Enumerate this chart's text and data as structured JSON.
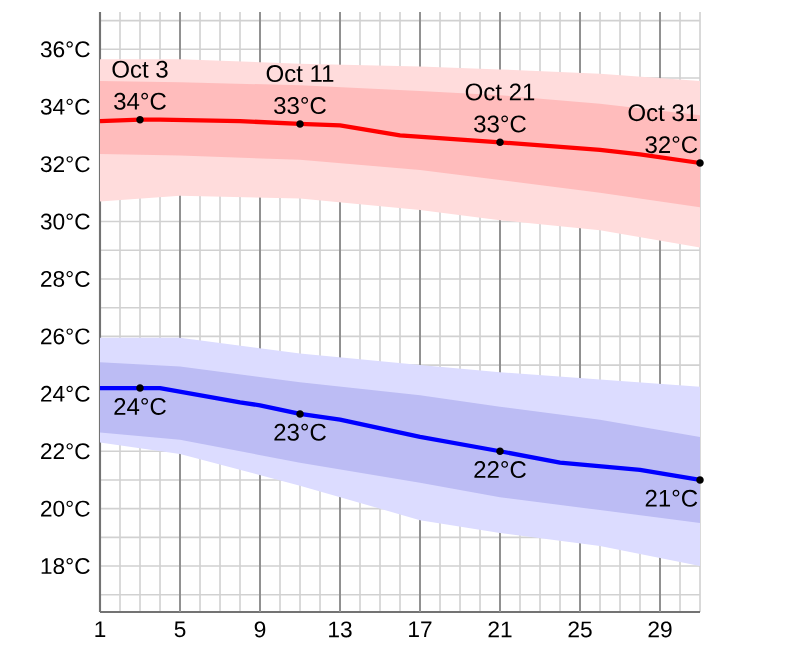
{
  "chart_data": {
    "type": "line",
    "xlim": [
      1,
      31
    ],
    "ylim": [
      16.4,
      37.3
    ],
    "xticks": [
      1,
      {
        "value": 2,
        "label": null
      },
      {
        "value": 3,
        "label": null
      },
      {
        "value": 4,
        "label": null
      },
      5,
      {
        "value": 6,
        "label": null
      },
      {
        "value": 7,
        "label": null
      },
      {
        "value": 8,
        "label": null
      },
      9,
      {
        "value": 10,
        "label": null
      },
      {
        "value": 11,
        "label": null
      },
      {
        "value": 12,
        "label": null
      },
      13,
      {
        "value": 14,
        "label": null
      },
      {
        "value": 15,
        "label": null
      },
      {
        "value": 16,
        "label": null
      },
      17,
      {
        "value": 18,
        "label": null
      },
      {
        "value": 19,
        "label": null
      },
      {
        "value": 20,
        "label": null
      },
      21,
      {
        "value": 22,
        "label": null
      },
      {
        "value": 23,
        "label": null
      },
      {
        "value": 24,
        "label": null
      },
      25,
      {
        "value": 26,
        "label": null
      },
      {
        "value": 27,
        "label": null
      },
      {
        "value": 28,
        "label": null
      },
      29,
      {
        "value": 30,
        "label": null
      },
      {
        "value": 31,
        "label": null
      }
    ],
    "yticks": [
      {
        "value": 17,
        "label": null
      },
      {
        "value": 18,
        "label": "18°C"
      },
      {
        "value": 19,
        "label": null
      },
      {
        "value": 20,
        "label": "20°C"
      },
      {
        "value": 21,
        "label": null
      },
      {
        "value": 22,
        "label": "22°C"
      },
      {
        "value": 23,
        "label": null
      },
      {
        "value": 24,
        "label": "24°C"
      },
      {
        "value": 25,
        "label": null
      },
      {
        "value": 26,
        "label": "26°C"
      },
      {
        "value": 27,
        "label": null
      },
      {
        "value": 28,
        "label": "28°C"
      },
      {
        "value": 29,
        "label": null
      },
      {
        "value": 30,
        "label": "30°C"
      },
      {
        "value": 31,
        "label": null
      },
      {
        "value": 32,
        "label": "32°C"
      },
      {
        "value": 33,
        "label": null
      },
      {
        "value": 34,
        "label": "34°C"
      },
      {
        "value": 35,
        "label": null
      },
      {
        "value": 36,
        "label": "36°C"
      },
      {
        "value": 37,
        "label": null
      }
    ],
    "grid": true,
    "marker": "none",
    "line_style": "solid",
    "series": [
      {
        "color": "#ffdcdc",
        "x": [
          1,
          5,
          11,
          17,
          21,
          26,
          31
        ],
        "values": [
          null,
          null,
          null,
          null,
          null,
          null,
          null
        ],
        "upper": [
          35.65,
          35.65,
          35.5,
          35.4,
          35.3,
          35.15,
          34.9
        ],
        "lower": [
          30.7,
          30.9,
          30.8,
          30.4,
          30.05,
          29.7,
          29.1
        ]
      },
      {
        "color": "#ffbcbc",
        "x": [
          1,
          5,
          11,
          17,
          21,
          26,
          31
        ],
        "values": [
          null,
          null,
          null,
          null,
          null,
          null,
          null
        ],
        "upper": [
          34.9,
          34.85,
          34.75,
          34.55,
          34.4,
          34.1,
          33.7
        ],
        "lower": [
          32.35,
          32.3,
          32.15,
          31.8,
          31.45,
          31.0,
          30.5
        ]
      },
      {
        "color": "#dcdcff",
        "x": [
          1,
          5,
          11,
          17,
          21,
          26,
          31
        ],
        "values": [
          null,
          null,
          null,
          null,
          null,
          null,
          null
        ],
        "upper": [
          25.95,
          25.95,
          25.4,
          25.0,
          24.75,
          24.5,
          24.25
        ],
        "lower": [
          22.3,
          21.9,
          20.8,
          19.6,
          19.15,
          18.7,
          18.0
        ]
      },
      {
        "color": "#bcbcf4",
        "x": [
          1,
          5,
          11,
          17,
          21,
          26,
          31
        ],
        "values": [
          null,
          null,
          null,
          null,
          null,
          null,
          null
        ],
        "upper": [
          25.1,
          24.95,
          24.4,
          23.95,
          23.55,
          23.1,
          22.5
        ],
        "lower": [
          22.65,
          22.4,
          21.6,
          20.9,
          20.4,
          19.95,
          19.5
        ]
      },
      {
        "color": "#ff0000",
        "x": [
          1,
          3,
          4,
          8,
          11,
          13,
          16,
          21,
          26,
          28,
          31
        ],
        "values": [
          33.5,
          33.55,
          33.55,
          33.5,
          33.4,
          33.35,
          33.0,
          32.76,
          32.5,
          32.34,
          32.04
        ]
      },
      {
        "color": "#0000ff",
        "x": [
          1,
          3,
          4,
          8,
          9,
          11,
          13,
          17,
          21,
          24,
          28,
          31
        ],
        "values": [
          24.2,
          24.2,
          24.2,
          23.7,
          23.6,
          23.3,
          23.1,
          22.5,
          22.0,
          21.6,
          21.35,
          21.0
        ]
      }
    ],
    "annotations": [
      {
        "text": "34°C",
        "x": 3,
        "y": 33.55
      },
      {
        "text": "Oct 3",
        "x": 3,
        "y": 33.55
      },
      {
        "text": "33°C",
        "x": 11,
        "y": 33.4
      },
      {
        "text": "Oct 11",
        "x": 11,
        "y": 33.4
      },
      {
        "text": "33°C",
        "x": 21,
        "y": 32.76
      },
      {
        "text": "Oct 21",
        "x": 21,
        "y": 32.76
      },
      {
        "text": "32°C",
        "x": 31,
        "y": 32.04
      },
      {
        "text": "Oct 31",
        "x": 31,
        "y": 32.04
      },
      {
        "text": "24°C",
        "x": 3,
        "y": 24.2
      },
      {
        "text": "23°C",
        "x": 11,
        "y": 23.3
      },
      {
        "text": "22°C",
        "x": 21,
        "y": 22.0
      },
      {
        "text": "21°C",
        "x": 31,
        "y": 21.0
      }
    ]
  }
}
